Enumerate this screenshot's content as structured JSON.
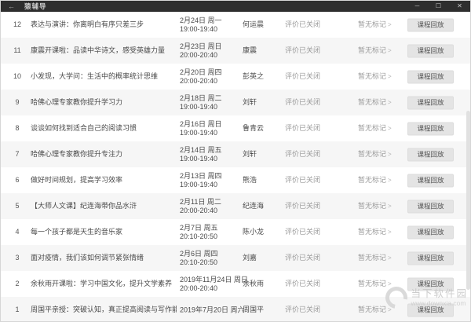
{
  "window": {
    "title": "猿辅导",
    "back_glyph": "←",
    "controls": {
      "minimize": "─",
      "maximize": "☐",
      "close": "✕"
    }
  },
  "list": {
    "shared": {
      "eval_label": "评价已关闭",
      "mark_label": "暂无标记",
      "mark_chevron": ">",
      "playback_label": "课程回放"
    },
    "rows": [
      {
        "num": "12",
        "title": "表达与演讲：你离明白有序只差三步",
        "date": "2月24日 周一",
        "time": "19:00-19:40",
        "teacher": "何运晨"
      },
      {
        "num": "11",
        "title": "康震开课啦：品读中华诗文，感受英雄力量",
        "date": "2月23日 周日",
        "time": "20:00-20:40",
        "teacher": "康震"
      },
      {
        "num": "10",
        "title": "小发现，大学问：生活中的概率统计思维",
        "date": "2月20日 周四",
        "time": "20:00-20:40",
        "teacher": "彭英之"
      },
      {
        "num": "9",
        "title": "哈佛心理专家教你提升学习力",
        "date": "2月18日 周二",
        "time": "19:00-19:40",
        "teacher": "刘轩"
      },
      {
        "num": "8",
        "title": "谈谈如何找到适合自己的阅读习惯",
        "date": "2月16日 周日",
        "time": "19:00-19:40",
        "teacher": "鲁青云"
      },
      {
        "num": "7",
        "title": "哈佛心理专家教你提升专注力",
        "date": "2月14日 周五",
        "time": "19:00-19:40",
        "teacher": "刘轩"
      },
      {
        "num": "6",
        "title": "做好时间规划，提高学习效率",
        "date": "2月13日 周四",
        "time": "19:00-19:40",
        "teacher": "熊浩"
      },
      {
        "num": "5",
        "title": "【大师人文课】纪连海带你品水浒",
        "date": "2月11日 周二",
        "time": "20:00-20:40",
        "teacher": "纪连海"
      },
      {
        "num": "4",
        "title": "每一个孩子都是天生的音乐家",
        "date": "2月7日 周五",
        "time": "20:10-20:50",
        "teacher": "陈小龙"
      },
      {
        "num": "3",
        "title": "面对疫情，我们该如何调节紧张情绪",
        "date": "2月6日 周四",
        "time": "20:10-20:50",
        "teacher": "刘嘉"
      },
      {
        "num": "2",
        "title": "余秋雨开课啦：学习中国文化，提升文学素养",
        "date": "2019年11月24日 周日",
        "time": "20:00-20:40",
        "teacher": "余秋雨"
      },
      {
        "num": "1",
        "title": "周国平亲授：突破认知，真正提高阅读与写作能力",
        "date": "2019年7月20日 周六",
        "time": "",
        "teacher": "周国平"
      }
    ]
  },
  "watermark": {
    "site_name": "当下软件园",
    "site_url": "www.downxia.com"
  },
  "colors": {
    "titlebar_bg": "#2e2e2e",
    "row_alt_bg": "#f6f6f6",
    "button_bg": "#e4e4e4",
    "muted_text": "#9a9a9a",
    "primary_text": "#4a4a4a"
  }
}
